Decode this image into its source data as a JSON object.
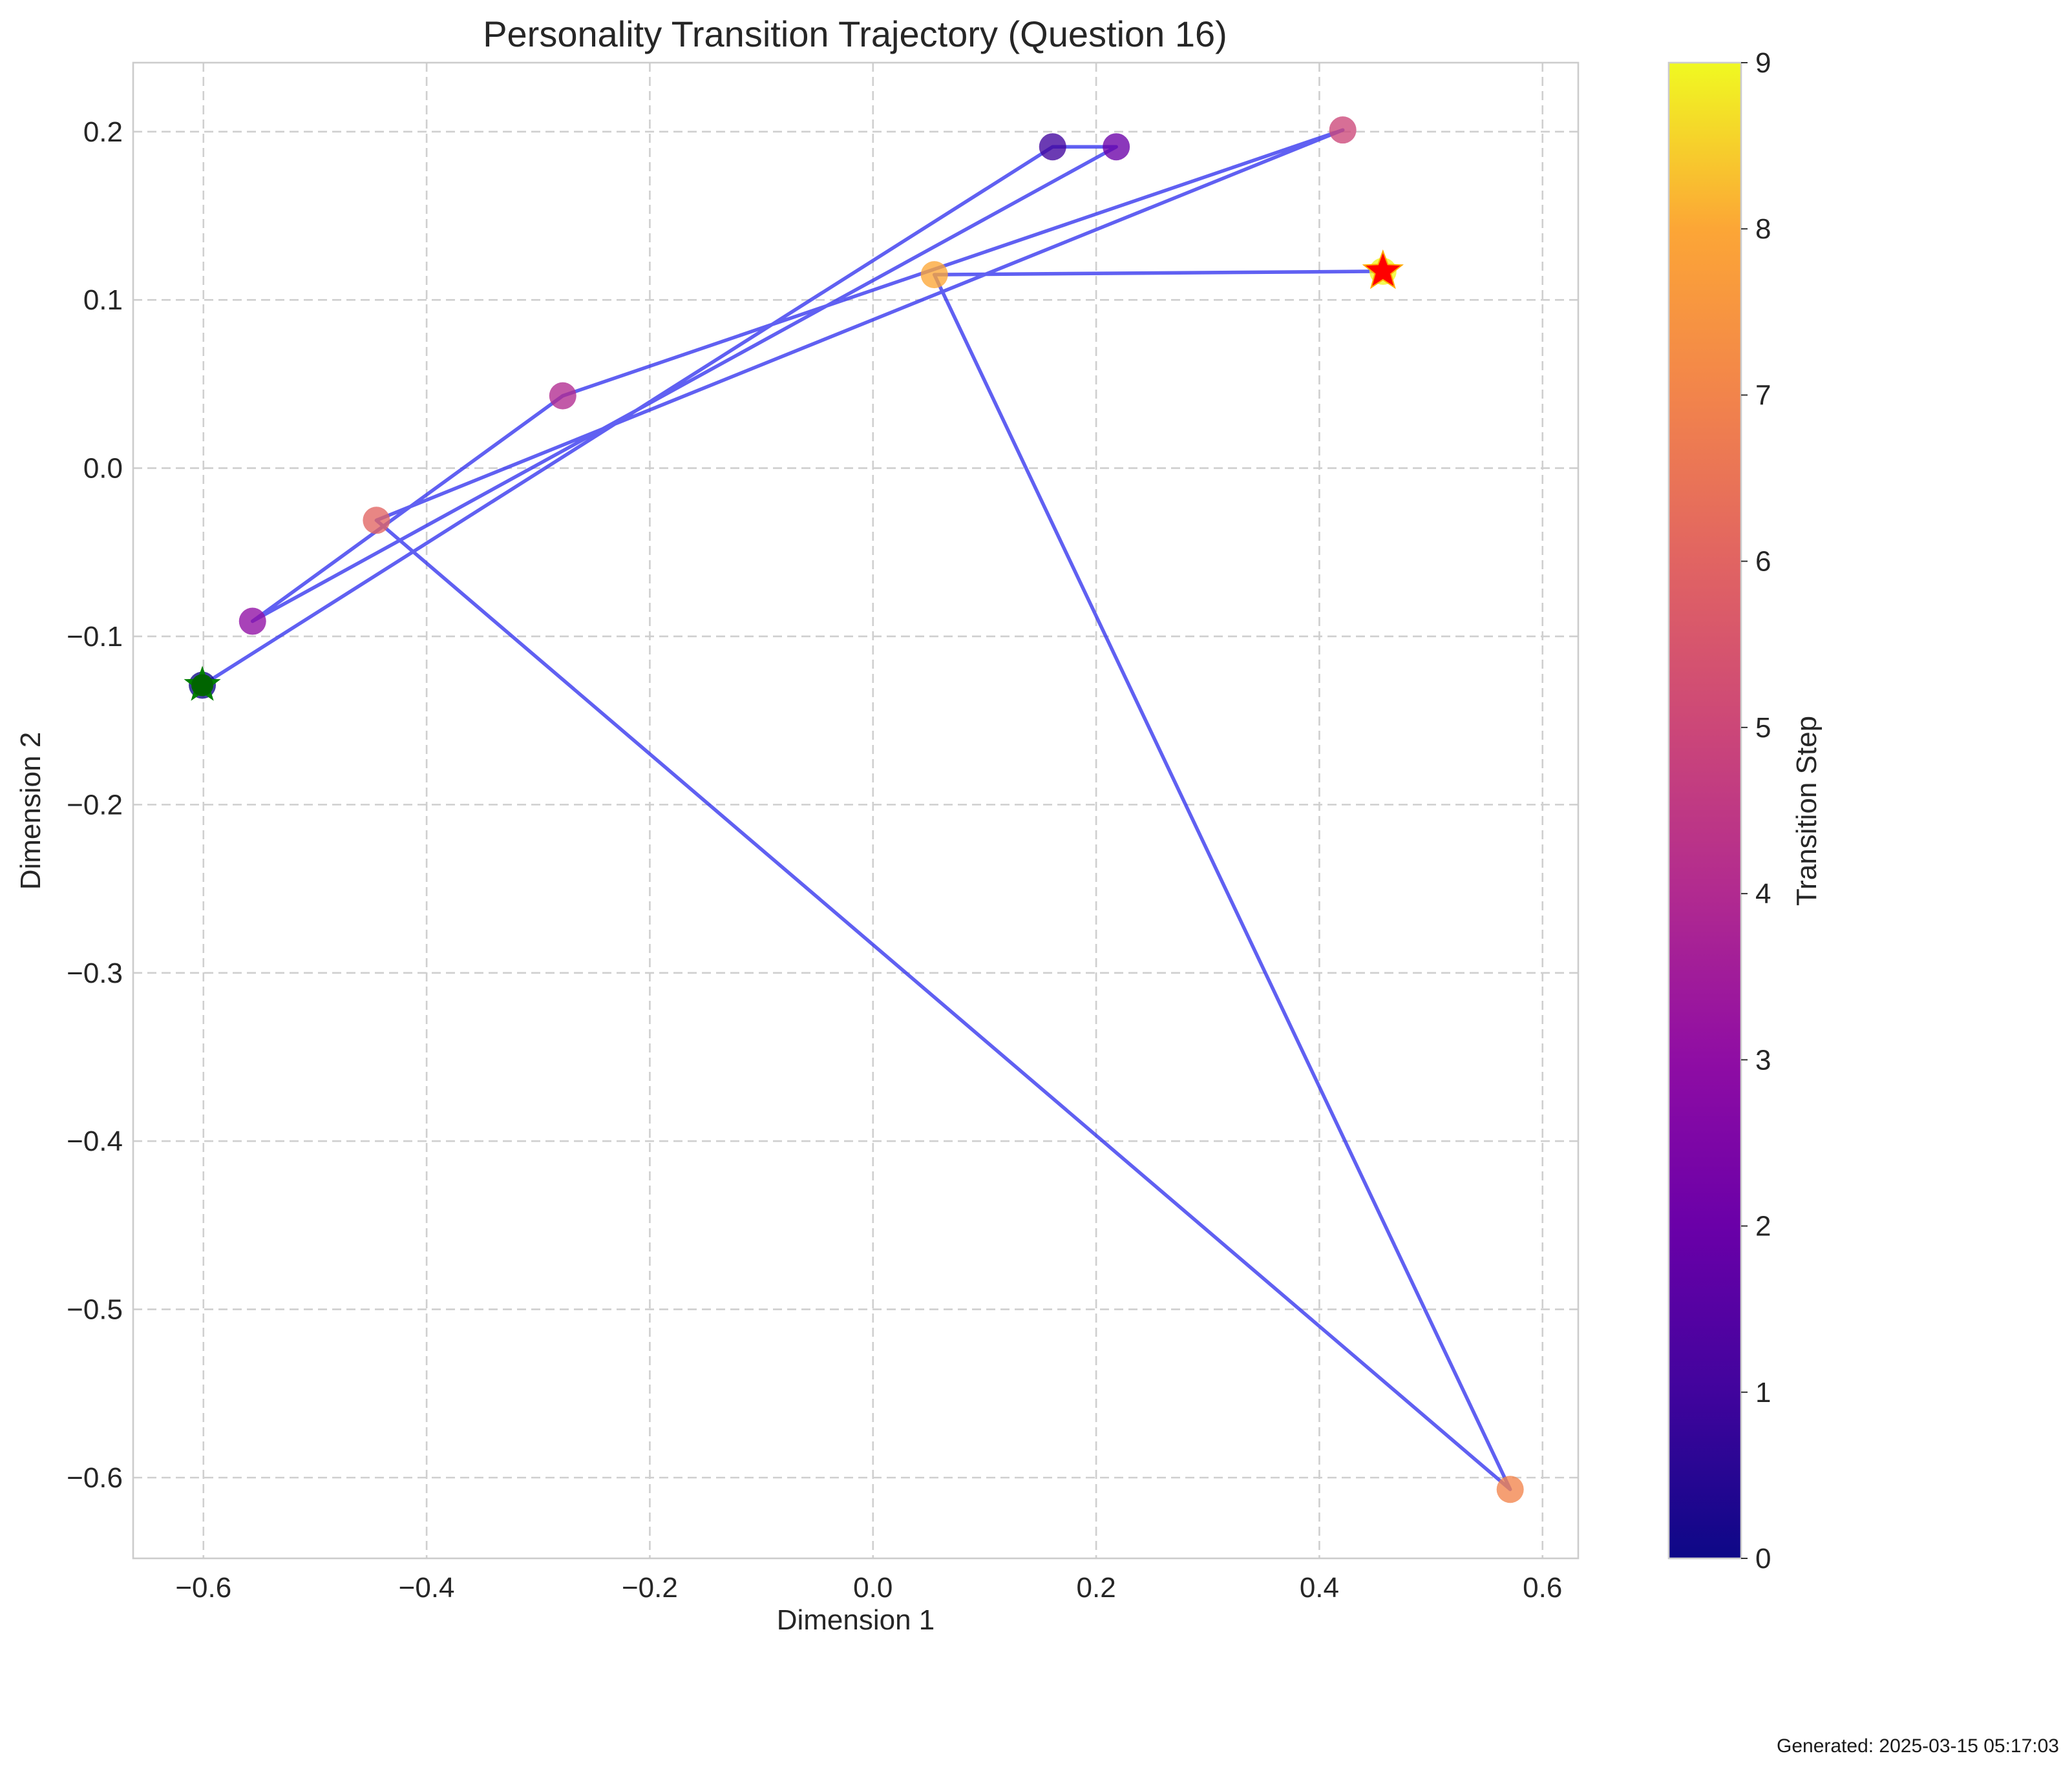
{
  "chart_data": {
    "type": "scatter",
    "title": "Personality Transition Trajectory (Question 16)",
    "xlabel": "Dimension 1",
    "ylabel": "Dimension 2",
    "xlim": [
      -0.663,
      0.632
    ],
    "ylim": [
      -0.648,
      0.241
    ],
    "xticks": [
      -0.6,
      -0.4,
      -0.2,
      0.0,
      0.2,
      0.4,
      0.6
    ],
    "yticks": [
      -0.6,
      -0.5,
      -0.4,
      -0.3,
      -0.2,
      -0.1,
      0.0,
      0.1,
      0.2
    ],
    "xtick_labels": [
      "−0.6",
      "−0.4",
      "−0.2",
      "0.0",
      "0.2",
      "0.4",
      "0.6"
    ],
    "ytick_labels": [
      "−0.6",
      "−0.5",
      "−0.4",
      "−0.3",
      "−0.2",
      "−0.1",
      "0.0",
      "0.1",
      "0.2"
    ],
    "grid": true,
    "points": [
      {
        "x": -0.601,
        "y": -0.129,
        "step": 0
      },
      {
        "x": 0.161,
        "y": 0.191,
        "step": 1
      },
      {
        "x": 0.218,
        "y": 0.191,
        "step": 2
      },
      {
        "x": -0.556,
        "y": -0.091,
        "step": 3
      },
      {
        "x": -0.278,
        "y": 0.043,
        "step": 4
      },
      {
        "x": 0.421,
        "y": 0.201,
        "step": 5
      },
      {
        "x": -0.445,
        "y": -0.031,
        "step": 6
      },
      {
        "x": 0.571,
        "y": -0.607,
        "step": 7
      },
      {
        "x": 0.055,
        "y": 0.115,
        "step": 8
      },
      {
        "x": 0.457,
        "y": 0.117,
        "step": 9
      }
    ],
    "start_marker": {
      "x": -0.601,
      "y": -0.129,
      "color": "#008000"
    },
    "end_marker": {
      "x": 0.457,
      "y": 0.117,
      "color": "#ff0000"
    },
    "line_color": "#3333ee",
    "colorbar": {
      "label": "Transition Step",
      "min": 0,
      "max": 9,
      "ticks": [
        "0",
        "1",
        "2",
        "3",
        "4",
        "5",
        "6",
        "7",
        "8",
        "9"
      ],
      "colormap": "plasma"
    }
  },
  "footer": {
    "generated": "Generated: 2025-03-15 05:17:03"
  }
}
